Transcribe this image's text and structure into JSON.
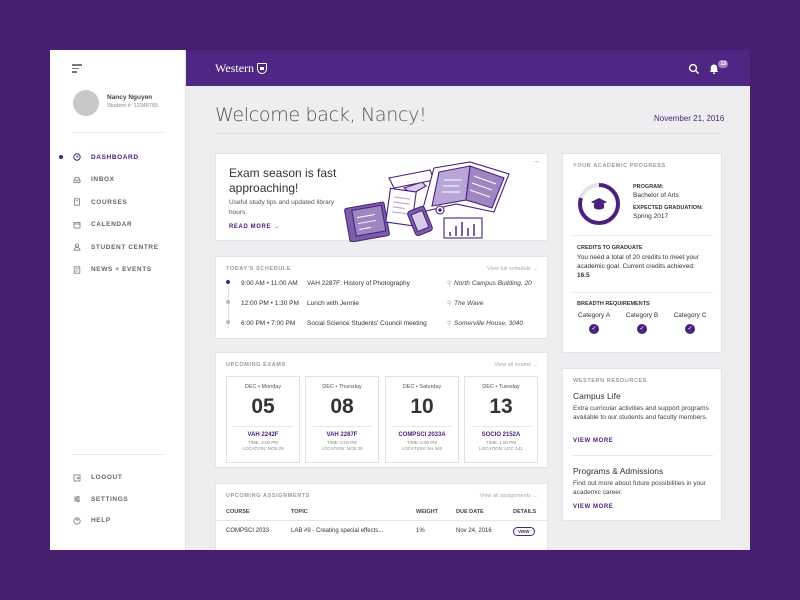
{
  "topbar": {
    "brand": "Western",
    "notification_count": "13"
  },
  "user": {
    "name": "Nancy Nguyen",
    "student_id": "Student #: 12348765"
  },
  "nav": {
    "items": [
      {
        "label": "DASHBOARD",
        "icon": "clock-icon"
      },
      {
        "label": "INBOX",
        "icon": "inbox-icon"
      },
      {
        "label": "COURSES",
        "icon": "book-icon"
      },
      {
        "label": "CALENDAR",
        "icon": "calendar-icon"
      },
      {
        "label": "STUDENT CENTRE",
        "icon": "user-icon"
      },
      {
        "label": "NEWS + EVENTS",
        "icon": "news-icon"
      }
    ],
    "bottom": [
      {
        "label": "LOGOUT",
        "icon": "logout-icon"
      },
      {
        "label": "SETTINGS",
        "icon": "sliders-icon"
      },
      {
        "label": "HELP",
        "icon": "help-icon"
      }
    ]
  },
  "header": {
    "welcome": "Welcome back, Nancy!",
    "date": "November 21, 2016"
  },
  "promo": {
    "title": "Exam season is fast approaching!",
    "subtitle": "Useful study tips and updated library hours.",
    "cta": "READ MORE →",
    "minimize": "–"
  },
  "schedule": {
    "title": "TODAY'S SCHEDULE",
    "link": "View full schedule →",
    "rows": [
      {
        "time": "9:00 AM • 11:00 AM",
        "event": "VAH 2287F: History of Photography",
        "location": "North Campus Building, 20"
      },
      {
        "time": "12:00 PM • 1:30 PM",
        "event": "Lunch with Jennie",
        "location": "The Wave"
      },
      {
        "time": "6:00 PM • 7:00 PM",
        "event": "Social Science Students' Council meeting",
        "location": "Somerville House, 3040"
      }
    ]
  },
  "exams": {
    "title": "UPCOMING EXAMS",
    "link": "View all exams →",
    "items": [
      {
        "day": "DEC • Monday",
        "num": "05",
        "code": "VAH 2242F",
        "time": "TIME: 2:00 PM",
        "location": "LOCATION: NCB 29"
      },
      {
        "day": "DEC • Thursday",
        "num": "08",
        "code": "VAH 2287F",
        "time": "TIME: 6:00 PM",
        "location": "LOCATION: NCB 20"
      },
      {
        "day": "DEC • Saturday",
        "num": "10",
        "code": "COMPSCI 2033A",
        "time": "TIME: 6:00 PM",
        "location": "LOCATION: SH 340"
      },
      {
        "day": "DEC • Tuesday",
        "num": "13",
        "code": "SOCIO 2152A",
        "time": "TIME: 1:00 PM",
        "location": "LOCATION: UCC 141"
      }
    ]
  },
  "assignments": {
    "title": "UPCOMING ASSIGNMENTS",
    "link": "View all assignments →",
    "headers": [
      "COURSE",
      "TOPIC",
      "WEIGHT",
      "DUE DATE",
      "DETAILS"
    ],
    "rows": [
      {
        "course": "COMPSCI 2033",
        "topic": "LAB #9 - Creating special effects...",
        "weight": "1%",
        "due": "Nov 24, 2016",
        "details": "VIEW"
      }
    ]
  },
  "progress": {
    "title": "YOUR ACADEMIC PROGRESS",
    "program_label": "PROGRAM:",
    "program": "Bachelor of Arts",
    "grad_label": "EXPECTED GRADUATION:",
    "grad": "Spring 2017",
    "ring_fraction": 0.8,
    "credits_title": "CREDITS TO GRADUATE",
    "credits_text": "You need a total of 20 credits to meet your academic goal. Current credits achieved:",
    "credits_value": "16.5",
    "breadth_title": "BREADTH REQUIREMENTS",
    "categories": [
      "Category A",
      "Category B",
      "Category C"
    ]
  },
  "resources": {
    "title": "WESTERN RESOURCES",
    "items": [
      {
        "title": "Campus Life",
        "text": "Extra curricular activities and support programs available to our students and faculty members.",
        "link": "VIEW MORE"
      },
      {
        "title": "Programs & Admissions",
        "text": "Find out more about future possibilities in your academic career.",
        "link": "VIEW MORE"
      }
    ]
  },
  "colors": {
    "brand": "#4f2683",
    "accent": "#4b2180"
  }
}
